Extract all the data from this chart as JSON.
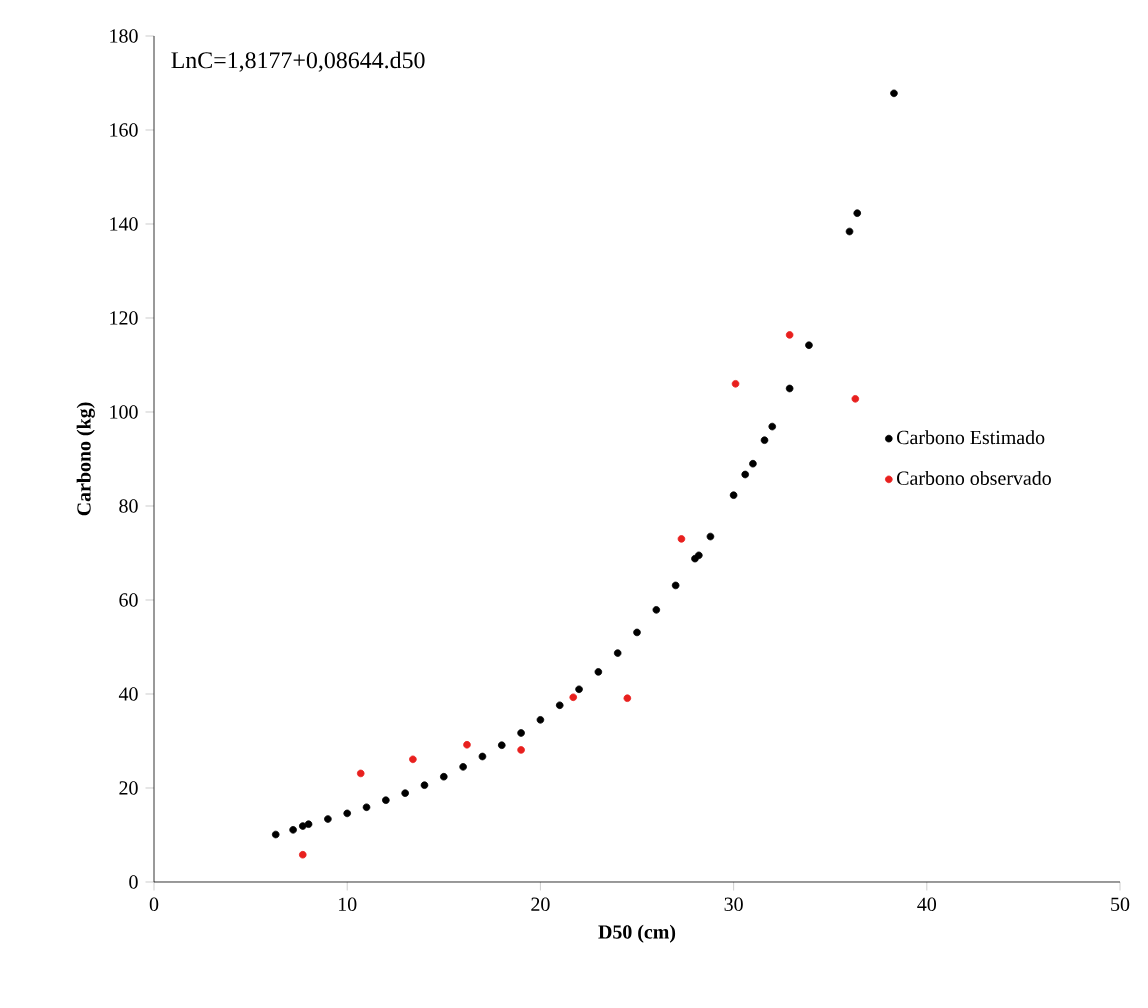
{
  "chart_data": {
    "type": "scatter",
    "xlabel": "D50 (cm)",
    "ylabel": "Carbono (kg)",
    "annotations": [
      "LnC=1,8177+0,08644.d50"
    ],
    "xlim": [
      0,
      50
    ],
    "ylim": [
      0,
      180
    ],
    "xticks": [
      0,
      10,
      20,
      30,
      40,
      50
    ],
    "yticks": [
      0,
      20,
      40,
      60,
      80,
      100,
      120,
      140,
      160,
      180
    ],
    "grid": false,
    "legend": "right",
    "marker": "circle",
    "series": [
      {
        "name": "Carbono Estimado",
        "color": "#000000",
        "x": [
          6.3,
          7.2,
          7.7,
          8,
          9,
          10,
          11,
          12,
          13,
          14,
          15,
          16,
          17,
          18,
          19,
          20,
          21,
          22,
          23,
          24,
          25,
          26,
          27,
          28,
          28.2,
          28.8,
          30.0,
          30.6,
          31.0,
          31.6,
          32.0,
          32.9,
          33.9,
          36.0,
          36.4,
          38.3
        ],
        "values": [
          10.1,
          11.1,
          11.9,
          12.3,
          13.4,
          14.6,
          15.9,
          17.4,
          18.9,
          20.6,
          22.4,
          24.5,
          26.7,
          29.1,
          31.7,
          34.5,
          37.6,
          41.0,
          44.7,
          48.7,
          53.1,
          57.9,
          63.1,
          68.8,
          69.5,
          73.5,
          82.3,
          86.7,
          89,
          94,
          96.9,
          105,
          114.2,
          138.4,
          142.3,
          167.8
        ]
      },
      {
        "name": "Carbono observado",
        "color": "#e8201e",
        "x": [
          7.7,
          10.7,
          13.4,
          16.2,
          19.0,
          21.7,
          24.5,
          27.3,
          30.1,
          32.9,
          36.3
        ],
        "values": [
          5.8,
          23.1,
          26.1,
          29.2,
          28.1,
          39.3,
          39.1,
          73,
          106,
          116.4,
          102.8
        ]
      }
    ]
  }
}
